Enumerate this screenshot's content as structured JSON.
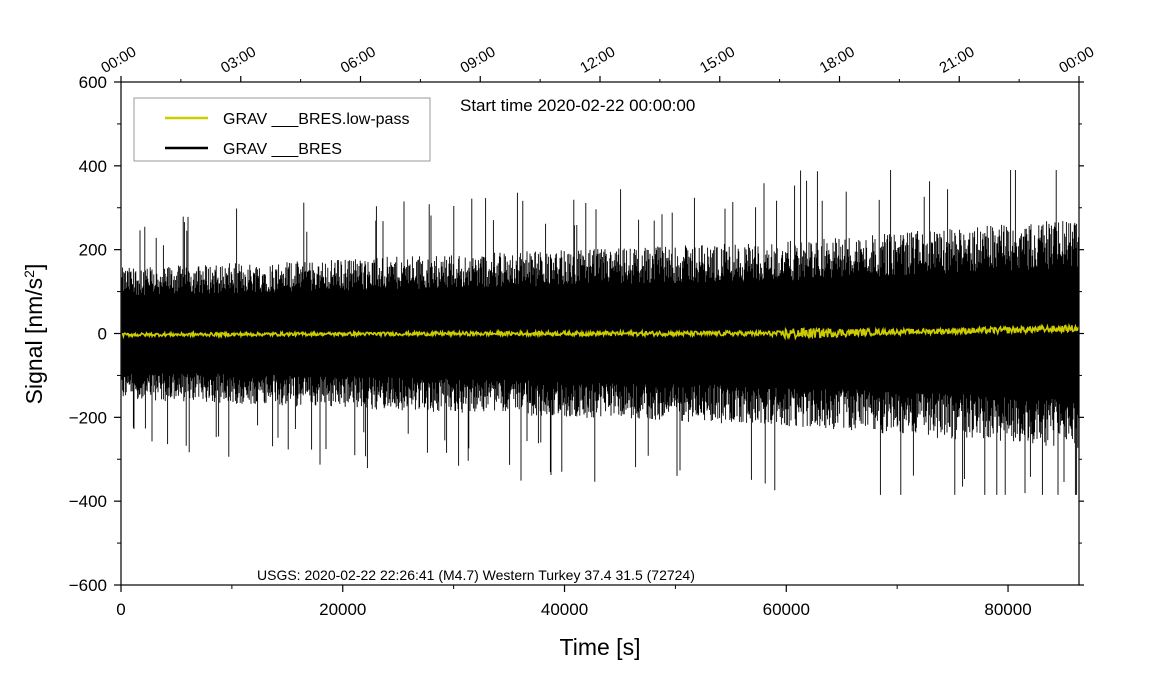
{
  "chart_data": {
    "type": "line",
    "title": "",
    "xlabel": "Time [s]",
    "ylabel": "Signal [nm/s²]",
    "xlim": [
      0,
      86400
    ],
    "ylim": [
      -600,
      600
    ],
    "x_ticks": [
      0,
      20000,
      40000,
      60000,
      80000
    ],
    "x_tick_labels": [
      "0",
      "20000",
      "40000",
      "60000",
      "80000"
    ],
    "y_ticks": [
      600,
      400,
      200,
      0,
      -200,
      -400,
      -600
    ],
    "y_tick_labels": [
      "600",
      "400",
      "200",
      "0",
      "−200",
      "−400",
      "−600"
    ],
    "top_axis": {
      "ticks": [
        0,
        10800,
        21600,
        32400,
        43200,
        54000,
        64800,
        75600,
        86400
      ],
      "labels": [
        "00:00",
        "03:00",
        "06:00",
        "09:00",
        "12:00",
        "15:00",
        "18:00",
        "21:00",
        "00:00"
      ]
    },
    "legend_location": "top-left",
    "annotations": {
      "start_time": "Start time 2020-02-22 00:00:00",
      "event": "USGS: 2020-02-22 22:26:41 (M4.7) Western Turkey 37.4 31.5 (72724)"
    },
    "series": [
      {
        "name": "GRAV ___BRES",
        "color": "#000000",
        "description_envelope": {
          "x": [
            0,
            10000,
            20000,
            30000,
            40000,
            50000,
            60000,
            70000,
            80000,
            86400
          ],
          "upper_typical": [
            150,
            160,
            170,
            180,
            190,
            200,
            210,
            230,
            250,
            260
          ],
          "lower_typical": [
            -150,
            -160,
            -170,
            -180,
            -190,
            -200,
            -210,
            -230,
            -250,
            -260
          ],
          "peak_max": 390,
          "peak_min": -385
        }
      },
      {
        "name": "GRAV ___BRES.low-pass",
        "color": "#cccc00",
        "description_envelope": {
          "x": [
            0,
            20000,
            40000,
            59500,
            60000,
            70000,
            80000,
            86400
          ],
          "mean": [
            -3,
            -1,
            0,
            0,
            0,
            4,
            8,
            12
          ],
          "amplitude": [
            4,
            4,
            5,
            6,
            14,
            6,
            8,
            8
          ]
        }
      }
    ]
  }
}
